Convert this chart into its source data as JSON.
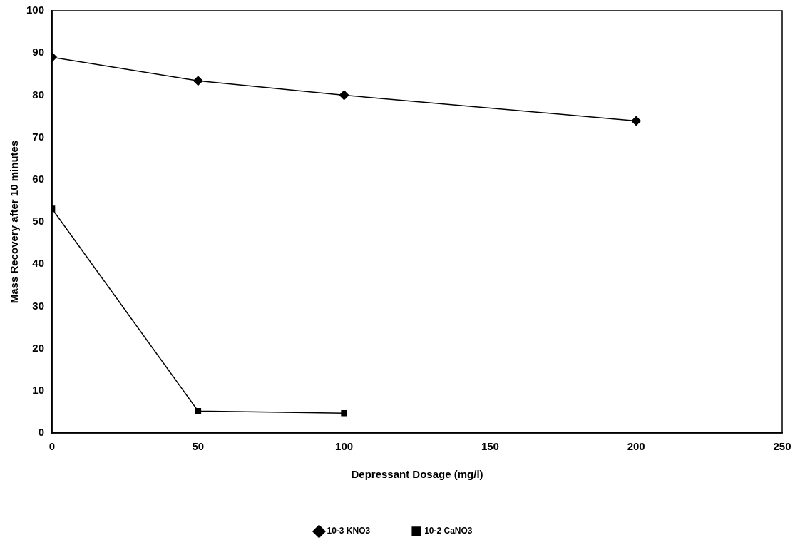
{
  "chart_data": {
    "type": "line",
    "xlabel": "Depressant Dosage (mg/l)",
    "ylabel": "Mass Recovery after 10 minutes",
    "xlim": [
      0,
      250
    ],
    "xticks": [
      0,
      50,
      100,
      150,
      200,
      250
    ],
    "ylim": [
      0,
      100
    ],
    "yticks": [
      0,
      10,
      20,
      30,
      40,
      50,
      60,
      70,
      80,
      90,
      100
    ],
    "grid": false,
    "legend": "bottom",
    "line_style": "solid",
    "series": [
      {
        "name": "10-3 KNO3",
        "color": "#000000",
        "marker": "diamond",
        "x": [
          0,
          50,
          100,
          200
        ],
        "values": [
          89.0,
          83.4,
          80.0,
          73.9
        ]
      },
      {
        "name": "10-2 CaNO3",
        "color": "#000000",
        "marker": "square",
        "x": [
          0,
          50,
          100
        ],
        "values": [
          53.1,
          5.2,
          4.7
        ]
      }
    ]
  }
}
